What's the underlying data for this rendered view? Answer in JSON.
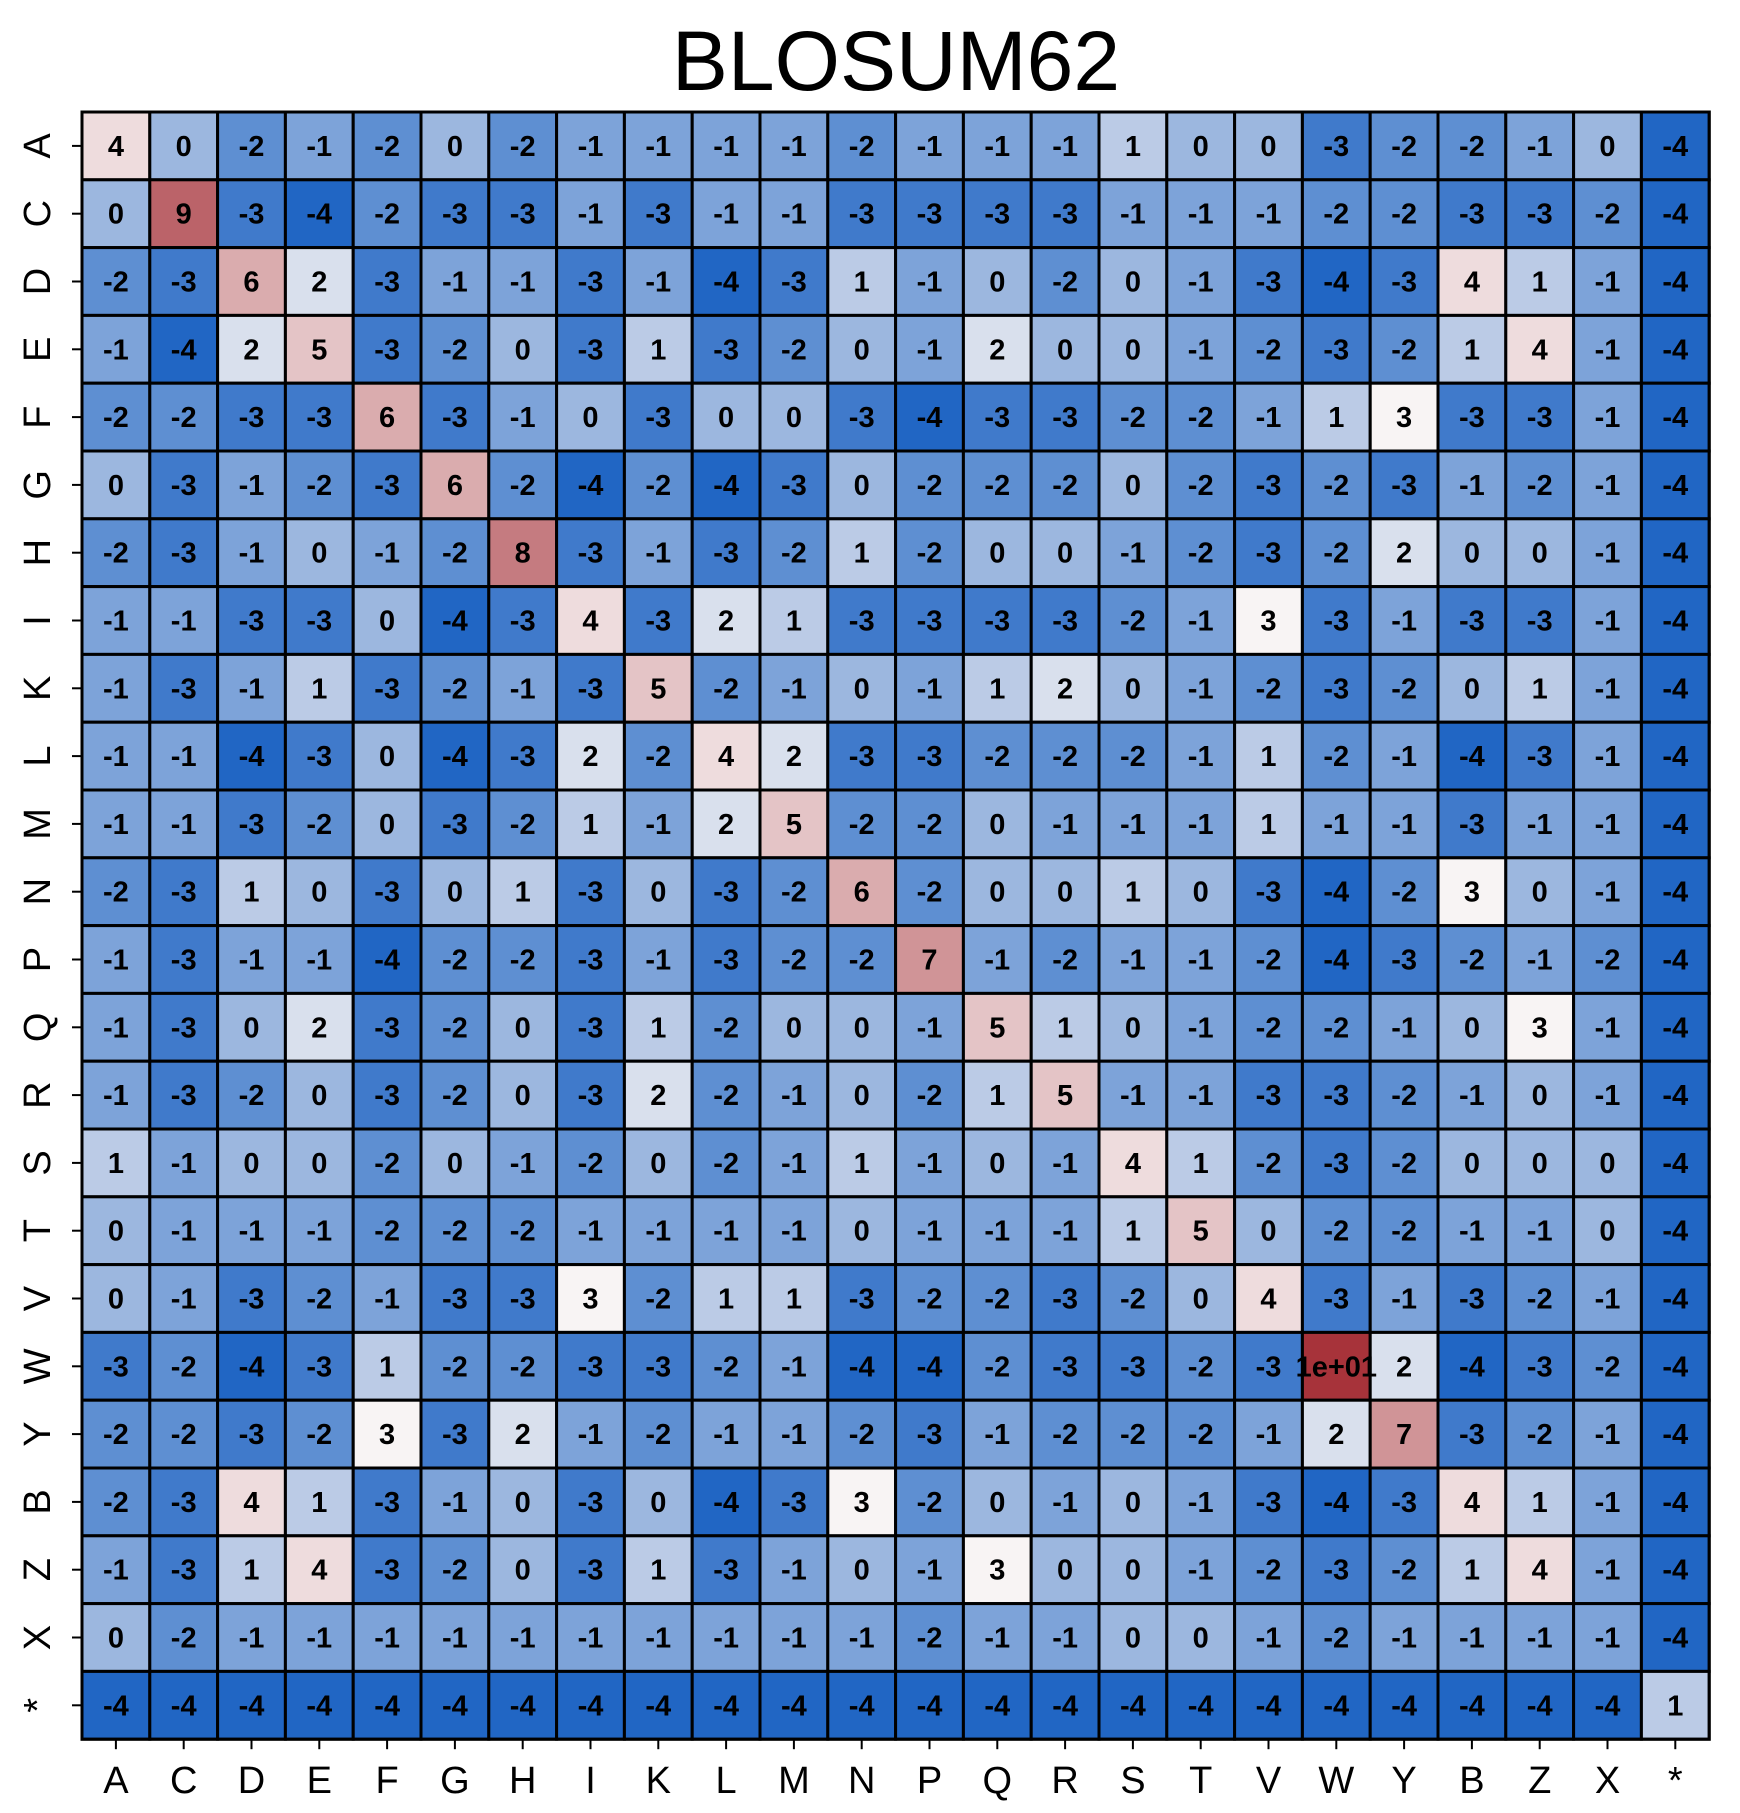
{
  "chart_data": {
    "type": "heatmap",
    "title": "BLOSUM62",
    "xlabel": "",
    "ylabel": "",
    "x_categories": [
      "A",
      "C",
      "D",
      "E",
      "F",
      "G",
      "H",
      "I",
      "K",
      "L",
      "M",
      "N",
      "P",
      "Q",
      "R",
      "S",
      "T",
      "V",
      "W",
      "Y",
      "B",
      "Z",
      "X",
      "*"
    ],
    "y_categories": [
      "A",
      "C",
      "D",
      "E",
      "F",
      "G",
      "H",
      "I",
      "K",
      "L",
      "M",
      "N",
      "P",
      "Q",
      "R",
      "S",
      "T",
      "V",
      "W",
      "Y",
      "B",
      "Z",
      "X",
      "*"
    ],
    "values": [
      [
        4,
        0,
        -2,
        -1,
        -2,
        0,
        -2,
        -1,
        -1,
        -1,
        -1,
        -2,
        -1,
        -1,
        -1,
        1,
        0,
        0,
        -3,
        -2,
        -2,
        -1,
        0,
        -4
      ],
      [
        0,
        9,
        -3,
        -4,
        -2,
        -3,
        -3,
        -1,
        -3,
        -1,
        -1,
        -3,
        -3,
        -3,
        -3,
        -1,
        -1,
        -1,
        -2,
        -2,
        -3,
        -3,
        -2,
        -4
      ],
      [
        -2,
        -3,
        6,
        2,
        -3,
        -1,
        -1,
        -3,
        -1,
        -4,
        -3,
        1,
        -1,
        0,
        -2,
        0,
        -1,
        -3,
        -4,
        -3,
        4,
        1,
        -1,
        -4
      ],
      [
        -1,
        -4,
        2,
        5,
        -3,
        -2,
        0,
        -3,
        1,
        -3,
        -2,
        0,
        -1,
        2,
        0,
        0,
        -1,
        -2,
        -3,
        -2,
        1,
        4,
        -1,
        -4
      ],
      [
        -2,
        -2,
        -3,
        -3,
        6,
        -3,
        -1,
        0,
        -3,
        0,
        0,
        -3,
        -4,
        -3,
        -3,
        -2,
        -2,
        -1,
        1,
        3,
        -3,
        -3,
        -1,
        -4
      ],
      [
        0,
        -3,
        -1,
        -2,
        -3,
        6,
        -2,
        -4,
        -2,
        -4,
        -3,
        0,
        -2,
        -2,
        -2,
        0,
        -2,
        -3,
        -2,
        -3,
        -1,
        -2,
        -1,
        -4
      ],
      [
        -2,
        -3,
        -1,
        0,
        -1,
        -2,
        8,
        -3,
        -1,
        -3,
        -2,
        1,
        -2,
        0,
        0,
        -1,
        -2,
        -3,
        -2,
        2,
        0,
        0,
        -1,
        -4
      ],
      [
        -1,
        -1,
        -3,
        -3,
        0,
        -4,
        -3,
        4,
        -3,
        2,
        1,
        -3,
        -3,
        -3,
        -3,
        -2,
        -1,
        3,
        -3,
        -1,
        -3,
        -3,
        -1,
        -4
      ],
      [
        -1,
        -3,
        -1,
        1,
        -3,
        -2,
        -1,
        -3,
        5,
        -2,
        -1,
        0,
        -1,
        1,
        2,
        0,
        -1,
        -2,
        -3,
        -2,
        0,
        1,
        -1,
        -4
      ],
      [
        -1,
        -1,
        -4,
        -3,
        0,
        -4,
        -3,
        2,
        -2,
        4,
        2,
        -3,
        -3,
        -2,
        -2,
        -2,
        -1,
        1,
        -2,
        -1,
        -4,
        -3,
        -1,
        -4
      ],
      [
        -1,
        -1,
        -3,
        -2,
        0,
        -3,
        -2,
        1,
        -1,
        2,
        5,
        -2,
        -2,
        0,
        -1,
        -1,
        -1,
        1,
        -1,
        -1,
        -3,
        -1,
        -1,
        -4
      ],
      [
        -2,
        -3,
        1,
        0,
        -3,
        0,
        1,
        -3,
        0,
        -3,
        -2,
        6,
        -2,
        0,
        0,
        1,
        0,
        -3,
        -4,
        -2,
        3,
        0,
        -1,
        -4
      ],
      [
        -1,
        -3,
        -1,
        -1,
        -4,
        -2,
        -2,
        -3,
        -1,
        -3,
        -2,
        -2,
        7,
        -1,
        -2,
        -1,
        -1,
        -2,
        -4,
        -3,
        -2,
        -1,
        -2,
        -4
      ],
      [
        -1,
        -3,
        0,
        2,
        -3,
        -2,
        0,
        -3,
        1,
        -2,
        0,
        0,
        -1,
        5,
        1,
        0,
        -1,
        -2,
        -2,
        -1,
        0,
        3,
        -1,
        -4
      ],
      [
        -1,
        -3,
        -2,
        0,
        -3,
        -2,
        0,
        -3,
        2,
        -2,
        -1,
        0,
        -2,
        1,
        5,
        -1,
        -1,
        -3,
        -3,
        -2,
        -1,
        0,
        -1,
        -4
      ],
      [
        1,
        -1,
        0,
        0,
        -2,
        0,
        -1,
        -2,
        0,
        -2,
        -1,
        1,
        -1,
        0,
        -1,
        4,
        1,
        -2,
        -3,
        -2,
        0,
        0,
        0,
        -4
      ],
      [
        0,
        -1,
        -1,
        -1,
        -2,
        -2,
        -2,
        -1,
        -1,
        -1,
        -1,
        0,
        -1,
        -1,
        -1,
        1,
        5,
        0,
        -2,
        -2,
        -1,
        -1,
        0,
        -4
      ],
      [
        0,
        -1,
        -3,
        -2,
        -1,
        -3,
        -3,
        3,
        -2,
        1,
        1,
        -3,
        -2,
        -2,
        -3,
        -2,
        0,
        4,
        -3,
        -1,
        -3,
        -2,
        -1,
        -4
      ],
      [
        -3,
        -2,
        -4,
        -3,
        1,
        -2,
        -2,
        -3,
        -3,
        -2,
        -1,
        -4,
        -4,
        -2,
        -3,
        -3,
        -2,
        -3,
        11,
        2,
        -4,
        -3,
        -2,
        -4
      ],
      [
        -2,
        -2,
        -3,
        -2,
        3,
        -3,
        2,
        -1,
        -2,
        -1,
        -1,
        -2,
        -3,
        -1,
        -2,
        -2,
        -2,
        -1,
        2,
        7,
        -3,
        -2,
        -1,
        -4
      ],
      [
        -2,
        -3,
        4,
        1,
        -3,
        -1,
        0,
        -3,
        0,
        -4,
        -3,
        3,
        -2,
        0,
        -1,
        0,
        -1,
        -3,
        -4,
        -3,
        4,
        1,
        -1,
        -4
      ],
      [
        -1,
        -3,
        1,
        4,
        -3,
        -2,
        0,
        -3,
        1,
        -3,
        -1,
        0,
        -1,
        3,
        0,
        0,
        -1,
        -2,
        -3,
        -2,
        1,
        4,
        -1,
        -4
      ],
      [
        0,
        -2,
        -1,
        -1,
        -1,
        -1,
        -1,
        -1,
        -1,
        -1,
        -1,
        -1,
        -2,
        -1,
        -1,
        0,
        0,
        -1,
        -2,
        -1,
        -1,
        -1,
        -1,
        -4
      ],
      [
        -4,
        -4,
        -4,
        -4,
        -4,
        -4,
        -4,
        -4,
        -4,
        -4,
        -4,
        -4,
        -4,
        -4,
        -4,
        -4,
        -4,
        -4,
        -4,
        -4,
        -4,
        -4,
        -4,
        1
      ]
    ],
    "cell_labels_note_override": [
      [
        18,
        18,
        "1e+01"
      ]
    ],
    "color_range": [
      -4,
      11
    ],
    "colors": {
      "low": "#2166c4",
      "mid": "#f8f4f4",
      "high": "#a7333a"
    },
    "grid": true,
    "legend": "none"
  }
}
